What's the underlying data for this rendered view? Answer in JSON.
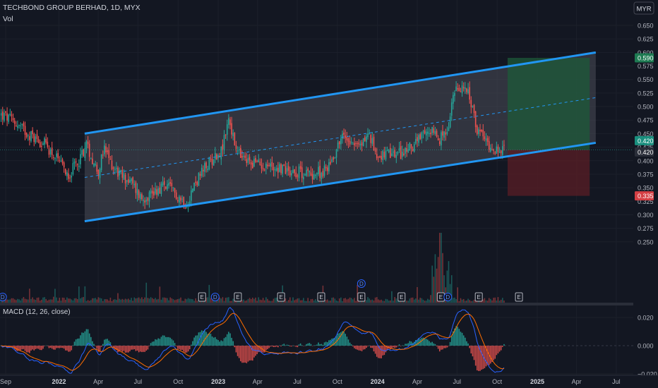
{
  "header": {
    "symbol": "TECHBOND GROUP BERHAD, 1D, MYX",
    "vol_label": "Vol",
    "currency_button": "MYR"
  },
  "colors": {
    "background": "#131722",
    "up": "#26a69a",
    "down": "#ef5350",
    "channel_line": "#2196f3",
    "channel_fill": "#4a4d57",
    "target_zone": "#1f4a34",
    "stop_zone": "#4a1c22",
    "macd_line": "#2962ff",
    "signal_line": "#ff6d00"
  },
  "chart_data": [
    {
      "type": "candlestick",
      "title": "TECHBOND GROUP BERHAD, 1D, MYX",
      "y_axis": {
        "ylim": [
          0.24,
          0.665
        ],
        "ticks": [
          "0.650",
          "0.625",
          "0.600",
          "0.575",
          "0.550",
          "0.525",
          "0.500",
          "0.475",
          "0.450",
          "0.425",
          "0.400",
          "0.375",
          "0.350",
          "0.325",
          "0.300",
          "0.275",
          "0.250"
        ]
      },
      "x_axis": {
        "labels": [
          "Sep",
          "2022",
          "Apr",
          "Jul",
          "Oct",
          "2023",
          "Apr",
          "Jul",
          "Oct",
          "2024",
          "Apr",
          "Jul",
          "Oct",
          "2025",
          "Apr",
          "Jul"
        ]
      },
      "close_path": [
        [
          "2021-08-20",
          0.485
        ],
        [
          "2021-09-15",
          0.475
        ],
        [
          "2021-10-15",
          0.455
        ],
        [
          "2021-11-10",
          0.44
        ],
        [
          "2021-12-01",
          0.43
        ],
        [
          "2021-12-20",
          0.41
        ],
        [
          "2022-01-10",
          0.385
        ],
        [
          "2022-01-25",
          0.375
        ],
        [
          "2022-02-15",
          0.4
        ],
        [
          "2022-03-05",
          0.43
        ],
        [
          "2022-03-20",
          0.4
        ],
        [
          "2022-04-01",
          0.38
        ],
        [
          "2022-04-15",
          0.42
        ],
        [
          "2022-05-01",
          0.395
        ],
        [
          "2022-05-20",
          0.375
        ],
        [
          "2022-06-15",
          0.36
        ],
        [
          "2022-07-10",
          0.33
        ],
        [
          "2022-08-10",
          0.345
        ],
        [
          "2022-09-01",
          0.355
        ],
        [
          "2022-10-01",
          0.335
        ],
        [
          "2022-10-20",
          0.32
        ],
        [
          "2022-11-10",
          0.36
        ],
        [
          "2022-12-01",
          0.385
        ],
        [
          "2022-12-20",
          0.405
        ],
        [
          "2023-01-10",
          0.42
        ],
        [
          "2023-01-25",
          0.48
        ],
        [
          "2023-02-10",
          0.42
        ],
        [
          "2023-03-01",
          0.4
        ],
        [
          "2023-04-01",
          0.395
        ],
        [
          "2023-05-01",
          0.39
        ],
        [
          "2023-06-01",
          0.385
        ],
        [
          "2023-07-01",
          0.38
        ],
        [
          "2023-08-01",
          0.375
        ],
        [
          "2023-09-01",
          0.38
        ],
        [
          "2023-09-20",
          0.405
        ],
        [
          "2023-10-10",
          0.445
        ],
        [
          "2023-11-01",
          0.44
        ],
        [
          "2023-11-20",
          0.425
        ],
        [
          "2023-12-10",
          0.45
        ],
        [
          "2024-01-01",
          0.41
        ],
        [
          "2024-02-01",
          0.41
        ],
        [
          "2024-03-01",
          0.415
        ],
        [
          "2024-04-01",
          0.435
        ],
        [
          "2024-05-01",
          0.455
        ],
        [
          "2024-05-20",
          0.44
        ],
        [
          "2024-06-10",
          0.45
        ],
        [
          "2024-06-25",
          0.535
        ],
        [
          "2024-07-05",
          0.52
        ],
        [
          "2024-07-15",
          0.545
        ],
        [
          "2024-08-01",
          0.51
        ],
        [
          "2024-08-15",
          0.46
        ],
        [
          "2024-09-01",
          0.44
        ],
        [
          "2024-09-20",
          0.425
        ],
        [
          "2024-10-10",
          0.415
        ],
        [
          "2024-10-20",
          0.42
        ]
      ],
      "channel": {
        "upper": [
          [
            "2022-03-01",
            0.45
          ],
          [
            "2025-05-15",
            0.6
          ]
        ],
        "lower": [
          [
            "2022-03-01",
            0.288
          ],
          [
            "2025-05-15",
            0.433
          ]
        ],
        "midline_dashed": true
      },
      "position": {
        "start": "2024-10-25",
        "end": "2025-05-01",
        "entry": 0.42,
        "target": 0.59,
        "stop": 0.335
      },
      "price_tags": [
        {
          "label": "0.590",
          "color": "#1e7b52"
        },
        {
          "label": "0.420",
          "color": "#1a8f7e"
        },
        {
          "label": "0.420",
          "color": "#2a2e39"
        },
        {
          "label": "0.335",
          "color": "#d43f44"
        }
      ],
      "event_markers": [
        {
          "date": "2021-08-25",
          "label": "D"
        },
        {
          "date": "2022-11-25",
          "label": "E"
        },
        {
          "date": "2022-12-25",
          "label": "D"
        },
        {
          "date": "2023-02-15",
          "label": "E"
        },
        {
          "date": "2023-05-25",
          "label": "E"
        },
        {
          "date": "2023-08-25",
          "label": "E"
        },
        {
          "date": "2023-11-25",
          "label": "E"
        },
        {
          "date": "2023-11-25",
          "label": "D"
        },
        {
          "date": "2024-02-25",
          "label": "E"
        },
        {
          "date": "2024-05-25",
          "label": "E"
        },
        {
          "date": "2024-06-10",
          "label": "D"
        },
        {
          "date": "2024-08-20",
          "label": "E"
        },
        {
          "date": "2024-11-20",
          "label": "E"
        }
      ]
    },
    {
      "type": "macd",
      "title": "MACD (12, 26, close)",
      "ylim": [
        -0.022,
        0.025
      ],
      "ticks": [
        "0.020",
        "0.000",
        "−0.020"
      ],
      "series": [
        {
          "name": "MACD"
        },
        {
          "name": "Signal"
        },
        {
          "name": "Histogram"
        }
      ]
    }
  ]
}
